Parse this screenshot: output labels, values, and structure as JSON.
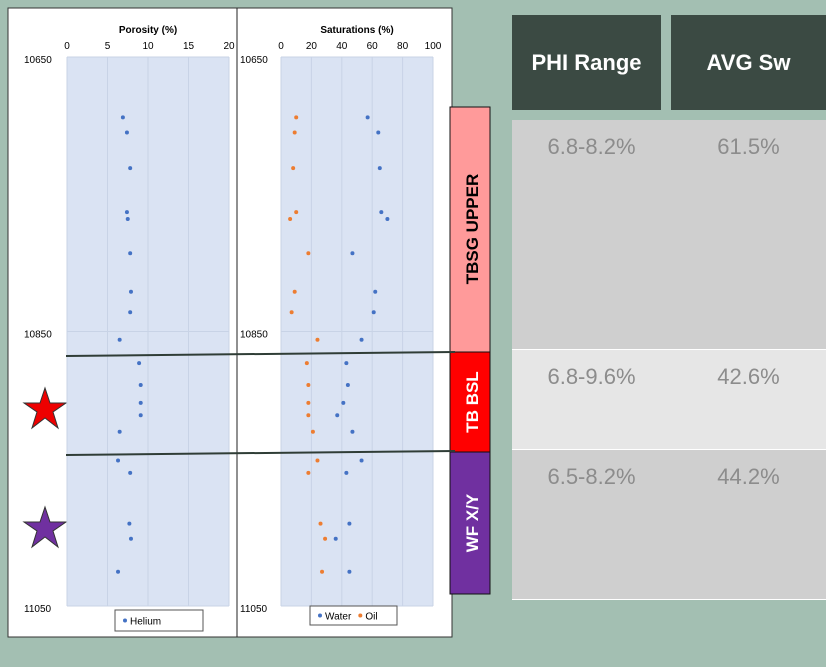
{
  "chart_data": [
    {
      "type": "scatter",
      "title": "Porosity (%)",
      "xlim": [
        0,
        20
      ],
      "xticks": [
        0,
        5,
        10,
        15,
        20
      ],
      "ylim": [
        10650,
        11050
      ],
      "yticks": [
        10650,
        10850,
        11050
      ],
      "y_inverted": true,
      "grid": true,
      "legend": "bottom",
      "series": [
        {
          "name": "Helium",
          "color": "#4472c4",
          "x": [
            6.9,
            7.4,
            7.8,
            7.4,
            7.5,
            7.8,
            7.9,
            7.8,
            6.5,
            8.9,
            9.1,
            9.1,
            9.1,
            6.5,
            6.3,
            7.8,
            7.7,
            7.9,
            6.3
          ],
          "y": [
            10694,
            10705,
            10731,
            10763,
            10768,
            10793,
            10821,
            10836,
            10856,
            10873,
            10889,
            10902,
            10911,
            10923,
            10944,
            10953,
            10990,
            11001,
            11025
          ]
        }
      ]
    },
    {
      "type": "scatter",
      "title": "Saturations (%)",
      "xlim": [
        0,
        100
      ],
      "xticks": [
        0,
        20,
        40,
        60,
        80,
        100
      ],
      "ylim": [
        10650,
        11050
      ],
      "yticks": [
        10650,
        10850,
        11050
      ],
      "y_inverted": true,
      "grid": true,
      "legend": "bottom",
      "series": [
        {
          "name": "Water",
          "color": "#4472c4",
          "x": [
            57,
            64,
            65,
            66,
            70,
            47,
            62,
            61,
            53,
            43,
            44,
            41,
            37,
            47,
            53,
            43,
            45,
            36,
            45
          ],
          "y": [
            10694,
            10705,
            10731,
            10763,
            10768,
            10793,
            10821,
            10836,
            10856,
            10873,
            10889,
            10902,
            10911,
            10923,
            10944,
            10953,
            10990,
            11001,
            11025
          ]
        },
        {
          "name": "Oil",
          "color": "#ed7d31",
          "x": [
            10,
            9,
            8,
            10,
            6,
            18,
            9,
            7,
            24,
            17,
            18,
            18,
            18,
            21,
            24,
            18,
            26,
            29,
            27
          ],
          "y": [
            10694,
            10705,
            10731,
            10763,
            10768,
            10793,
            10821,
            10836,
            10856,
            10873,
            10889,
            10902,
            10911,
            10923,
            10944,
            10953,
            10990,
            11001,
            11025
          ]
        }
      ]
    }
  ],
  "zones": [
    "TBSG UPPER",
    "TB BSL",
    "WF X/Y"
  ],
  "table": {
    "header": [
      "PHI Range",
      "AVG Sw"
    ],
    "rows": [
      [
        "6.8-8.2%",
        "61.5%"
      ],
      [
        "6.8-9.6%",
        "42.6%"
      ],
      [
        "6.5-8.2%",
        "44.2%"
      ]
    ]
  }
}
